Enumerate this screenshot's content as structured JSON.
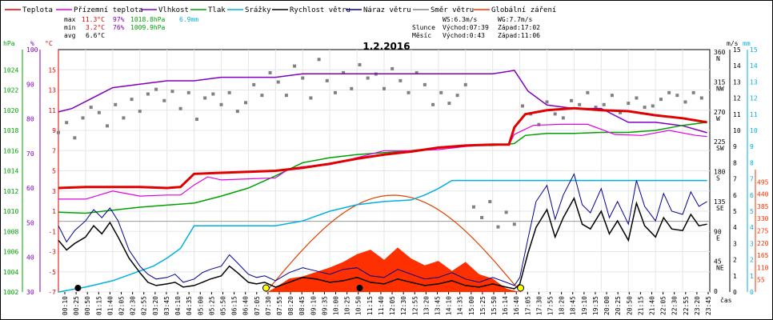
{
  "colors": {
    "teplota": "#e00000",
    "pocitova": "#e000e0",
    "vlhkost": "#8000c0",
    "tlak": "#00a000",
    "srazky": "#00b0e0",
    "rychlost": "#000000",
    "naraz": "#000090",
    "smer": "#808080",
    "zareni": "#ff3000",
    "sun_curve": "#e04000"
  },
  "legend": [
    {
      "label": "Teplota",
      "color": "#e00000"
    },
    {
      "label": "Přízemní teplota",
      "color": "#e000e0"
    },
    {
      "label": "Vlhkost",
      "color": "#8000c0"
    },
    {
      "label": "Tlak",
      "color": "#00a000"
    },
    {
      "label": "Srážky",
      "color": "#00b0e0"
    },
    {
      "label": "Rychlost větru",
      "color": "#000000"
    },
    {
      "label": "Náraz větru",
      "color": "#000090"
    },
    {
      "label": "Směr větru",
      "color": "#808080"
    },
    {
      "label": "Globální záření",
      "color": "#ff3000"
    }
  ],
  "stats": {
    "max_label": "max",
    "min_label": "min",
    "avg_label": "avg",
    "max": {
      "temp": "11.3°C",
      "hum": "97%",
      "press": "1018.8hPa",
      "rain": "6.9mm"
    },
    "min": {
      "temp": "3.2°C",
      "hum": "76%",
      "press": "1009.9hPa"
    },
    "avg": {
      "temp": "6.6°C"
    }
  },
  "wind_info": {
    "ws": "WS:6.3m/s",
    "wg": "WG:7.7m/s",
    "slunce": "Slunce",
    "slunce_vychod": "Východ:07:39",
    "slunce_zapad": "Západ:17:02",
    "mesic": "Měsíc",
    "mesic_vychod": "Východ:0:43",
    "mesic_zapad": "Západ:11:06"
  },
  "chart_data": {
    "type": "line",
    "title": "1.2.2016",
    "xlabel": "čas",
    "axis_units": {
      "press": "hPa",
      "hum": "%",
      "temp": "°C",
      "dir": "m/s",
      "rain": "mm"
    },
    "x_ticks": [
      "00:10",
      "00:25",
      "00:50",
      "01:15",
      "01:40",
      "02:05",
      "02:30",
      "02:55",
      "03:20",
      "03:45",
      "04:10",
      "04:35",
      "05:00",
      "05:25",
      "05:50",
      "06:15",
      "06:40",
      "07:05",
      "07:30",
      "07:55",
      "08:20",
      "08:45",
      "09:10",
      "09:35",
      "10:00",
      "10:25",
      "10:50",
      "11:15",
      "11:40",
      "12:05",
      "12:30",
      "12:55",
      "13:20",
      "13:45",
      "14:10",
      "14:35",
      "15:00",
      "15:25",
      "15:50",
      "16:14",
      "16:40",
      "17:05",
      "17:30",
      "17:55",
      "18:20",
      "18:45",
      "19:10",
      "19:35",
      "20:00",
      "20:25",
      "20:50",
      "21:15",
      "21:40",
      "22:05",
      "22:30",
      "22:55",
      "23:20",
      "23:45"
    ],
    "axes": {
      "pressure": {
        "unit": "hPa",
        "range": [
          1002,
          1026
        ],
        "ticks": [
          "1024",
          "1022",
          "1020",
          "1018",
          "1016",
          "1014",
          "1012",
          "1010",
          "1008",
          "1006",
          "1004",
          "1002"
        ]
      },
      "humidity": {
        "unit": "%",
        "range": [
          30,
          100
        ],
        "ticks": [
          "100",
          "90",
          "80",
          "70",
          "60",
          "50",
          "40",
          "30"
        ]
      },
      "temperature": {
        "unit": "°C",
        "range": [
          -7,
          17
        ],
        "ticks": [
          "15",
          "13",
          "11",
          "9",
          "7",
          "5",
          "3",
          "1",
          "-1",
          "-3",
          "-5",
          "-7"
        ]
      },
      "direction": {
        "ticks": [
          "360 N",
          "315 NW",
          "270 W",
          "225 SW",
          "180 S",
          "135 SE",
          "90 E",
          "45 NE",
          "0"
        ]
      },
      "wind": {
        "unit": "m/s",
        "range": [
          0,
          15
        ],
        "ticks": [
          "15",
          "14",
          "13",
          "12",
          "11",
          "10",
          "9",
          "8",
          "7",
          "6",
          "5",
          "4",
          "3",
          "2",
          "1",
          "0"
        ]
      },
      "radiation": {
        "ticks": [
          "495",
          "440",
          "385",
          "330",
          "275",
          "220",
          "165",
          "110",
          "55"
        ]
      },
      "rain": {
        "unit": "mm",
        "range": [
          0,
          15
        ],
        "ticks": [
          "15",
          "14",
          "13",
          "12",
          "11",
          "10",
          "9",
          "8",
          "7",
          "6",
          "5",
          "4",
          "3",
          "2",
          "1",
          "0"
        ]
      }
    },
    "sunrise_hour": 7.65,
    "sunset_hour": 17.03,
    "series": [
      {
        "name": "Teplota",
        "unit": "°C",
        "x_hours": [
          0,
          1,
          2,
          3,
          4,
          4.5,
          5,
          6,
          7,
          8,
          9,
          10,
          11,
          12,
          13,
          14,
          15,
          16,
          16.6,
          16.8,
          17.2,
          18,
          19,
          20,
          21,
          22,
          23,
          23.9
        ],
        "values": [
          3.3,
          3.4,
          3.4,
          3.4,
          3.3,
          3.4,
          4.7,
          4.8,
          4.9,
          5.0,
          5.3,
          5.7,
          6.2,
          6.6,
          6.9,
          7.3,
          7.5,
          7.6,
          7.6,
          9.3,
          10.6,
          11.0,
          11.2,
          11.0,
          10.9,
          10.5,
          10.2,
          9.8
        ]
      },
      {
        "name": "Přízemní teplota",
        "unit": "°C",
        "x_hours": [
          0,
          1,
          2,
          3,
          4,
          4.5,
          5,
          5.5,
          6,
          7,
          8,
          8.5,
          9,
          10,
          11,
          12,
          13,
          14,
          15,
          16,
          16.6,
          16.8,
          17.5,
          18.5,
          19.5,
          20.5,
          21.5,
          22.5,
          23.5,
          23.9
        ],
        "values": [
          2.2,
          2.2,
          3.0,
          2.5,
          2.6,
          2.6,
          3.6,
          4.4,
          4.1,
          4.2,
          4.3,
          5.2,
          5.4,
          5.6,
          6.3,
          7.0,
          7.0,
          7.1,
          7.4,
          7.6,
          7.6,
          8.6,
          9.5,
          9.6,
          9.6,
          8.6,
          8.5,
          9.0,
          8.5,
          8.4
        ]
      },
      {
        "name": "Vlhkost",
        "unit": "%",
        "x_hours": [
          0,
          0.5,
          1,
          2,
          3,
          4,
          5,
          6,
          7,
          8,
          9,
          10,
          11,
          12,
          13,
          14,
          15,
          16,
          16.8,
          17.3,
          18,
          19,
          20,
          21,
          22,
          23,
          23.9
        ],
        "values": [
          82,
          83,
          85,
          89,
          90,
          91,
          91,
          92,
          92,
          92,
          93,
          93,
          93,
          93,
          93,
          93,
          93,
          93,
          94,
          88,
          84,
          83,
          83,
          79,
          79,
          78,
          76
        ]
      },
      {
        "name": "Tlak",
        "unit": "hPa",
        "x_hours": [
          0,
          1,
          2,
          3,
          4,
          5,
          6,
          7,
          8,
          9,
          10,
          11,
          12,
          13,
          14,
          15,
          16,
          16.8,
          17.2,
          18,
          19,
          20,
          21,
          22,
          23,
          23.9
        ],
        "values": [
          1009.9,
          1009.8,
          1010.1,
          1010.4,
          1010.6,
          1010.8,
          1011.5,
          1012.3,
          1013.5,
          1014.8,
          1015.3,
          1015.6,
          1015.8,
          1016.0,
          1016.3,
          1016.5,
          1016.5,
          1016.7,
          1017.5,
          1017.7,
          1017.7,
          1017.8,
          1017.8,
          1018.0,
          1018.5,
          1018.8
        ]
      },
      {
        "name": "Srážky",
        "unit": "mm",
        "x_hours": [
          0,
          1,
          2,
          3,
          3.5,
          4,
          4.5,
          5,
          6,
          7,
          8,
          9,
          10,
          11,
          12,
          13,
          13.5,
          14,
          14.5,
          15,
          16,
          17,
          18,
          19,
          20,
          21,
          22,
          23,
          23.9
        ],
        "values": [
          0,
          0.3,
          0.7,
          1.3,
          1.6,
          2.1,
          2.7,
          4.1,
          4.1,
          4.1,
          4.1,
          4.4,
          5.0,
          5.4,
          5.6,
          5.7,
          6.0,
          6.4,
          6.9,
          6.9,
          6.9,
          6.9,
          6.9,
          6.9,
          6.9,
          6.9,
          6.9,
          6.9,
          6.9
        ]
      },
      {
        "name": "Rychlost větru",
        "unit": "m/s",
        "x_hours": [
          0,
          0.3,
          0.6,
          1,
          1.3,
          1.6,
          1.9,
          2.2,
          2.6,
          3,
          3.3,
          3.6,
          4,
          4.3,
          4.6,
          5,
          5.3,
          5.6,
          6,
          6.3,
          6.6,
          7,
          7.3,
          7.6,
          8,
          8.5,
          9,
          9.5,
          10,
          10.5,
          11,
          11.5,
          12,
          12.5,
          13,
          13.5,
          14,
          14.5,
          15,
          15.5,
          16,
          16.5,
          16.8,
          17,
          17.3,
          17.6,
          18,
          18.3,
          18.6,
          19,
          19.3,
          19.6,
          20,
          20.3,
          20.6,
          21,
          21.3,
          21.6,
          22,
          22.3,
          22.6,
          23,
          23.3,
          23.6,
          23.9
        ],
        "values": [
          3.2,
          2.6,
          3.0,
          3.4,
          4.1,
          3.6,
          4.3,
          3.4,
          2.1,
          1.2,
          0.6,
          0.4,
          0.5,
          0.6,
          0.3,
          0.4,
          0.6,
          0.8,
          1.0,
          1.6,
          1.2,
          0.6,
          0.5,
          0.6,
          0.3,
          0.6,
          0.9,
          0.8,
          0.6,
          0.7,
          0.9,
          0.6,
          0.5,
          0.8,
          0.6,
          0.4,
          0.5,
          0.7,
          0.4,
          0.3,
          0.5,
          0.3,
          0.2,
          0.5,
          2.4,
          4.0,
          5.1,
          3.4,
          4.6,
          5.8,
          4.2,
          3.9,
          5.0,
          3.6,
          4.4,
          3.2,
          5.5,
          4.1,
          3.4,
          4.6,
          3.9,
          3.8,
          4.8,
          4.1,
          4.2
        ]
      },
      {
        "name": "Náraz větru",
        "unit": "m/s",
        "x_hours": [
          0,
          0.3,
          0.6,
          1,
          1.3,
          1.6,
          1.9,
          2.2,
          2.6,
          3,
          3.3,
          3.6,
          4,
          4.3,
          4.6,
          5,
          5.3,
          5.6,
          6,
          6.3,
          6.6,
          7,
          7.3,
          7.6,
          8,
          8.5,
          9,
          9.5,
          10,
          10.5,
          11,
          11.5,
          12,
          12.5,
          13,
          13.5,
          14,
          14.5,
          15,
          15.5,
          16,
          16.5,
          16.8,
          17,
          17.3,
          17.6,
          18,
          18.3,
          18.6,
          19,
          19.3,
          19.6,
          20,
          20.3,
          20.6,
          21,
          21.3,
          21.6,
          22,
          22.3,
          22.6,
          23,
          23.3,
          23.6,
          23.9
        ],
        "values": [
          4.1,
          3.1,
          3.8,
          4.4,
          5.1,
          4.6,
          5.2,
          4.4,
          2.6,
          1.6,
          1.1,
          0.8,
          0.9,
          1.1,
          0.6,
          0.8,
          1.2,
          1.4,
          1.6,
          2.3,
          1.8,
          1.1,
          0.9,
          1.0,
          0.7,
          1.2,
          1.5,
          1.3,
          1.1,
          1.4,
          1.5,
          1.0,
          0.9,
          1.4,
          1.1,
          0.8,
          0.9,
          1.2,
          0.8,
          0.6,
          0.9,
          0.6,
          0.4,
          0.9,
          3.3,
          5.6,
          6.6,
          4.5,
          6.0,
          7.3,
          5.4,
          4.9,
          6.4,
          4.6,
          5.6,
          4.2,
          6.9,
          5.3,
          4.4,
          6.1,
          5.0,
          4.8,
          6.2,
          5.3,
          5.6
        ]
      },
      {
        "name": "Směr větru",
        "unit": "°",
        "x_hours": [
          0,
          0.3,
          0.6,
          0.9,
          1.2,
          1.5,
          1.8,
          2.1,
          2.4,
          2.7,
          3,
          3.3,
          3.6,
          3.9,
          4.2,
          4.5,
          4.8,
          5.1,
          5.4,
          5.7,
          6,
          6.3,
          6.6,
          6.9,
          7.2,
          7.5,
          7.8,
          8.1,
          8.4,
          8.7,
          9,
          9.3,
          9.6,
          9.9,
          10.2,
          10.5,
          10.8,
          11.1,
          11.4,
          11.7,
          12,
          12.3,
          12.6,
          12.9,
          13.2,
          13.5,
          13.8,
          14.1,
          14.4,
          14.7,
          15,
          15.3,
          15.6,
          15.9,
          16.2,
          16.5,
          16.8,
          17.1,
          17.4,
          17.7,
          18,
          18.3,
          18.6,
          18.9,
          19.2,
          19.5,
          19.8,
          20.1,
          20.4,
          20.7,
          21,
          21.3,
          21.6,
          21.9,
          22.2,
          22.5,
          22.8,
          23.1,
          23.4,
          23.7
        ],
        "values": [
          240,
          255,
          232,
          262,
          278,
          270,
          250,
          282,
          262,
          290,
          272,
          298,
          305,
          288,
          302,
          276,
          300,
          260,
          292,
          298,
          282,
          300,
          272,
          285,
          312,
          296,
          330,
          316,
          296,
          340,
          322,
          292,
          350,
          318,
          300,
          330,
          306,
          342,
          322,
          328,
          306,
          336,
          318,
          300,
          330,
          312,
          282,
          300,
          284,
          296,
          312,
          128,
          112,
          136,
          98,
          120,
          102,
          280,
          268,
          252,
          286,
          268,
          262,
          288,
          282,
          300,
          278,
          282,
          296,
          270,
          284,
          292,
          278,
          280,
          290,
          300,
          296,
          286,
          300,
          292
        ]
      },
      {
        "name": "Globální záření",
        "unit": "W/m²",
        "x_hours": [
          7.7,
          8,
          8.5,
          9,
          9.5,
          10,
          10.5,
          11,
          11.5,
          12,
          12.5,
          13,
          13.5,
          14,
          14.5,
          15,
          15.5,
          16,
          16.5,
          17.0
        ],
        "values": [
          0,
          20,
          60,
          70,
          90,
          110,
          135,
          170,
          190,
          145,
          200,
          150,
          120,
          140,
          95,
          135,
          80,
          60,
          15,
          0
        ]
      }
    ]
  }
}
